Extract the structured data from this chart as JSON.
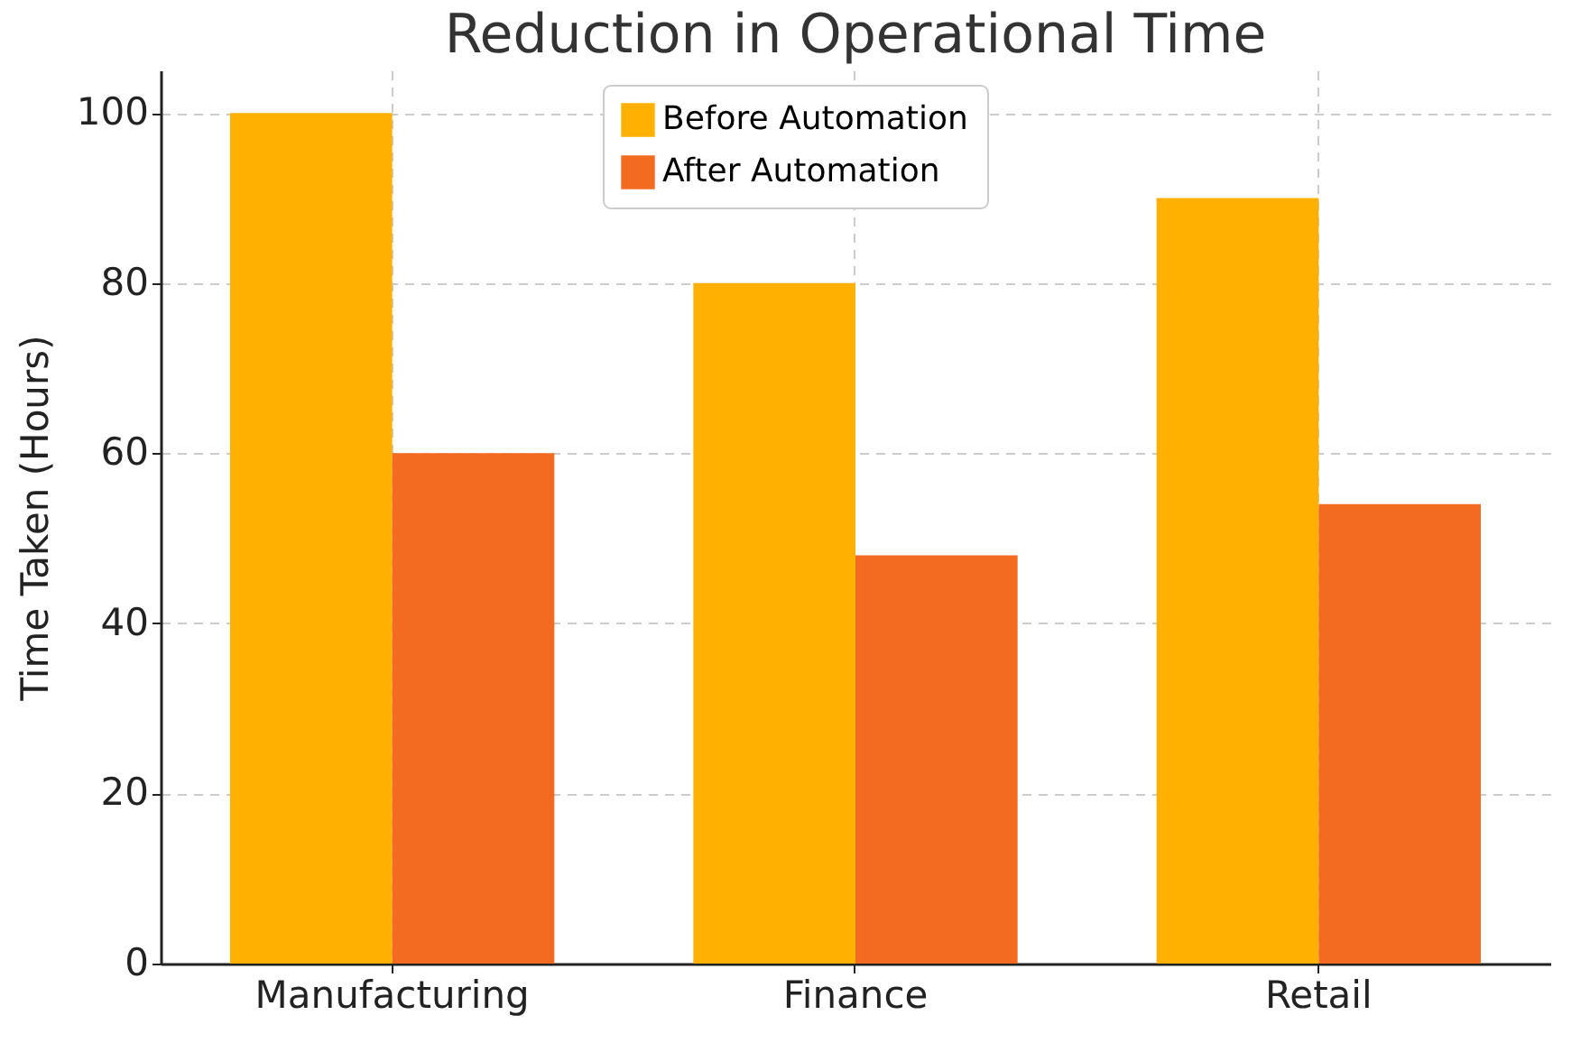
{
  "chart_data": {
    "type": "bar",
    "title": "Reduction in Operational Time",
    "ylabel": "Time Taken (Hours)",
    "categories": [
      "Manufacturing",
      "Finance",
      "Retail"
    ],
    "series": [
      {
        "name": "Before Automation",
        "color": "#ffb000",
        "values": [
          100,
          80,
          90
        ]
      },
      {
        "name": "After Automation",
        "color": "#f26b21",
        "values": [
          60,
          48,
          54
        ]
      }
    ],
    "ylim": [
      0,
      105
    ],
    "yticks": [
      0,
      20,
      40,
      60,
      80,
      100
    ],
    "grid": true,
    "legend": "top"
  }
}
